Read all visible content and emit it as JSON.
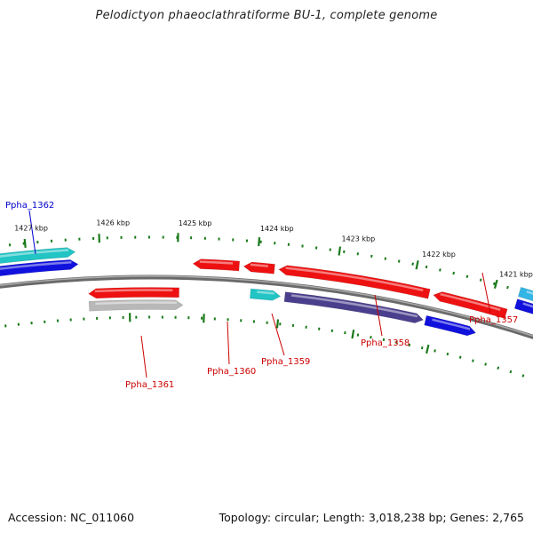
{
  "title": "Pelodictyon phaeoclathratiforme BU-1, complete genome",
  "footer": {
    "accession": "Accession: NC_011060",
    "topology": "Topology: circular; Length: 3,018,238 bp; Genes: 2,765"
  },
  "scale_labels": [
    "1421 kbp",
    "1422 kbp",
    "1423 kbp",
    "1424 kbp",
    "1425 kbp",
    "1426 kbp",
    "1427 kbp"
  ],
  "colors": {
    "forward_cds": "#ee1111",
    "reverse_cds": "#1111dd",
    "rna": "#22c4c4",
    "other": "#4a3f8c",
    "pseudo": "#b8b8b8",
    "backbone": "#808080",
    "ticks": "#1a7a1a",
    "label_red": "#cc0000",
    "label_blue": "#0000cc"
  },
  "genes": [
    {
      "label": "Ppha_1357",
      "color": "label_red"
    },
    {
      "label": "Ppha_1358",
      "color": "label_red"
    },
    {
      "label": "Ppha_1359",
      "color": "label_red"
    },
    {
      "label": "Ppha_1360",
      "color": "label_red"
    },
    {
      "label": "Ppha_1361",
      "color": "label_red"
    },
    {
      "label": "Ppha_1362",
      "color": "label_blue"
    }
  ]
}
